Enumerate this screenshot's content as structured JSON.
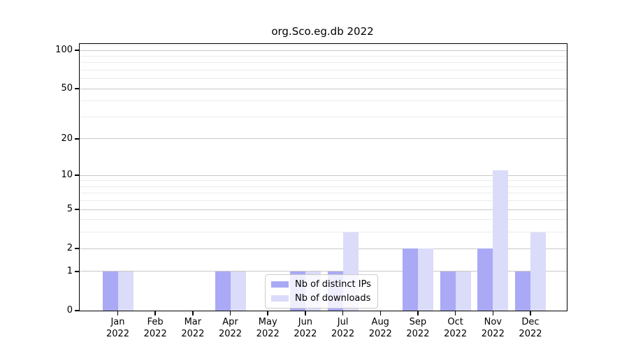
{
  "title": "org.Sco.eg.db 2022",
  "chart_data": {
    "type": "bar",
    "title": "org.Sco.eg.db 2022",
    "categories": [
      "Jan 2022",
      "Feb 2022",
      "Mar 2022",
      "Apr 2022",
      "May 2022",
      "Jun 2022",
      "Jul 2022",
      "Aug 2022",
      "Sep 2022",
      "Oct 2022",
      "Nov 2022",
      "Dec 2022"
    ],
    "x_tick_months": [
      "Jan",
      "Feb",
      "Mar",
      "Apr",
      "May",
      "Jun",
      "Jul",
      "Aug",
      "Sep",
      "Oct",
      "Nov",
      "Dec"
    ],
    "x_tick_year": "2022",
    "series": [
      {
        "name": "Nb of distinct IPs",
        "color": "#a9a9f6",
        "values": [
          1,
          0,
          0,
          1,
          0,
          1,
          1,
          0,
          2,
          1,
          2,
          1
        ]
      },
      {
        "name": "Nb of downloads",
        "color": "#dbdbfa",
        "values": [
          1,
          0,
          0,
          1,
          0,
          1,
          3,
          0,
          2,
          1,
          11,
          3
        ]
      }
    ],
    "xlabel": "",
    "ylabel": "",
    "y_ticks": [
      0,
      1,
      2,
      5,
      10,
      20,
      50,
      100
    ],
    "y_minor_grid": [
      3,
      4,
      6,
      7,
      8,
      9,
      30,
      40,
      60,
      70,
      80,
      90
    ],
    "scale": "log10(1+v)",
    "ylim": [
      0,
      112
    ],
    "grid": "on",
    "legend_position": "inside-bottom-center",
    "colors": {
      "major_grid": "#c8c8c8",
      "minor_grid": "#ebebeb",
      "axis": "#000000",
      "legend_border": "#cccccc"
    }
  }
}
